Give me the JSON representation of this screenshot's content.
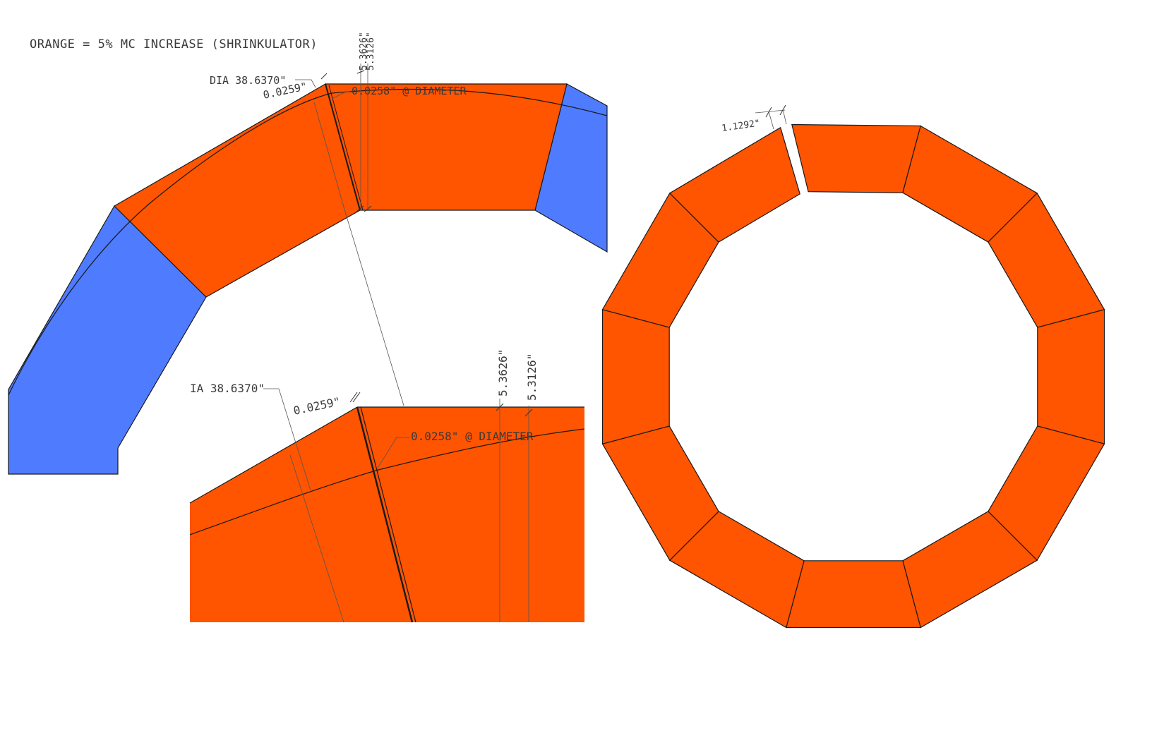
{
  "colors": {
    "orange": "#ff5400",
    "blue": "#4f7bff",
    "line": "#1a1a1a",
    "dimension": "#555555"
  },
  "caption": "ORANGE = 5% MC INCREASE (SHRINKULATOR)",
  "top_detail": {
    "dia_label": "DIA 38.6370\"",
    "gap_label": "0.0259\"",
    "diameter_gap_label": "0.0258\" @ DIAMETER",
    "width_a_label": "5.3626\"",
    "width_b_label": "5.3126\""
  },
  "zoom_detail": {
    "dia_label": "IA 38.6370\"",
    "gap_label": "0.0259\"",
    "diameter_gap_label": "0.0258\" @ DIAMETER",
    "width_a_label": "5.3626\"",
    "width_b_label": "5.3126\""
  },
  "ring": {
    "segment_count": 12,
    "gap_label": "1.1292\""
  }
}
